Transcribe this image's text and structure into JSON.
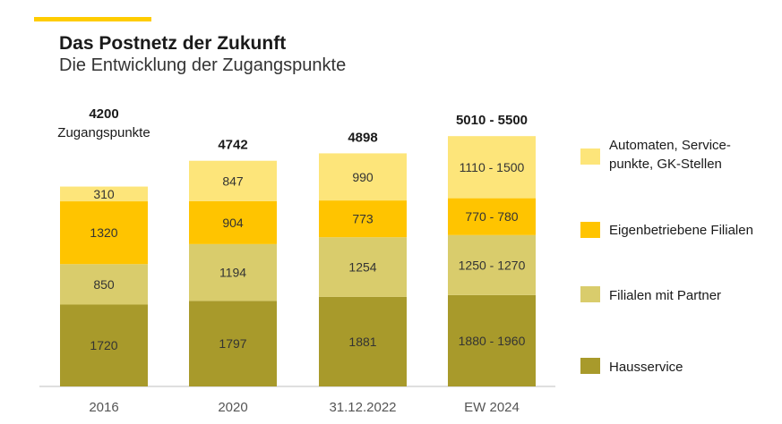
{
  "header": {
    "title": "Das Postnetz der Zukunft",
    "subtitle": "Die Entwicklung der Zugangspunkte"
  },
  "colors": {
    "accent": "#ffcc00",
    "hausservice": "#a89a2b",
    "partner": "#d9cc6c",
    "eigen": "#ffc400",
    "automaten": "#fde57a",
    "axis": "#bfbfbf"
  },
  "chart_data": {
    "type": "bar",
    "stacked": true,
    "categories": [
      "2016",
      "2020",
      "31.12.2022",
      "EW 2024"
    ],
    "totals": [
      "4200",
      "4742",
      "4898",
      "5010 - 5500"
    ],
    "total_note": "Zugangspunkte",
    "series": [
      {
        "name": "Hausservice",
        "values": [
          1720,
          1797,
          1881,
          1920
        ],
        "labels": [
          "1720",
          "1797",
          "1881",
          "1880 - 1960"
        ],
        "color": "#a89a2b"
      },
      {
        "name": "Filialen mit Partner",
        "values": [
          850,
          1194,
          1254,
          1260
        ],
        "labels": [
          "850",
          "1194",
          "1254",
          "1250 - 1270"
        ],
        "color": "#d9cc6c"
      },
      {
        "name": "Eigenbetriebene Filialen",
        "values": [
          1320,
          904,
          773,
          775
        ],
        "labels": [
          "1320",
          "904",
          "773",
          "770 - 780"
        ],
        "color": "#ffc400"
      },
      {
        "name": "Automaten, Service-\npunkte, GK-Stellen",
        "values": [
          310,
          847,
          990,
          1305
        ],
        "labels": [
          "310",
          "847",
          "990",
          "1110 - 1500"
        ],
        "color": "#fde57a"
      }
    ]
  }
}
